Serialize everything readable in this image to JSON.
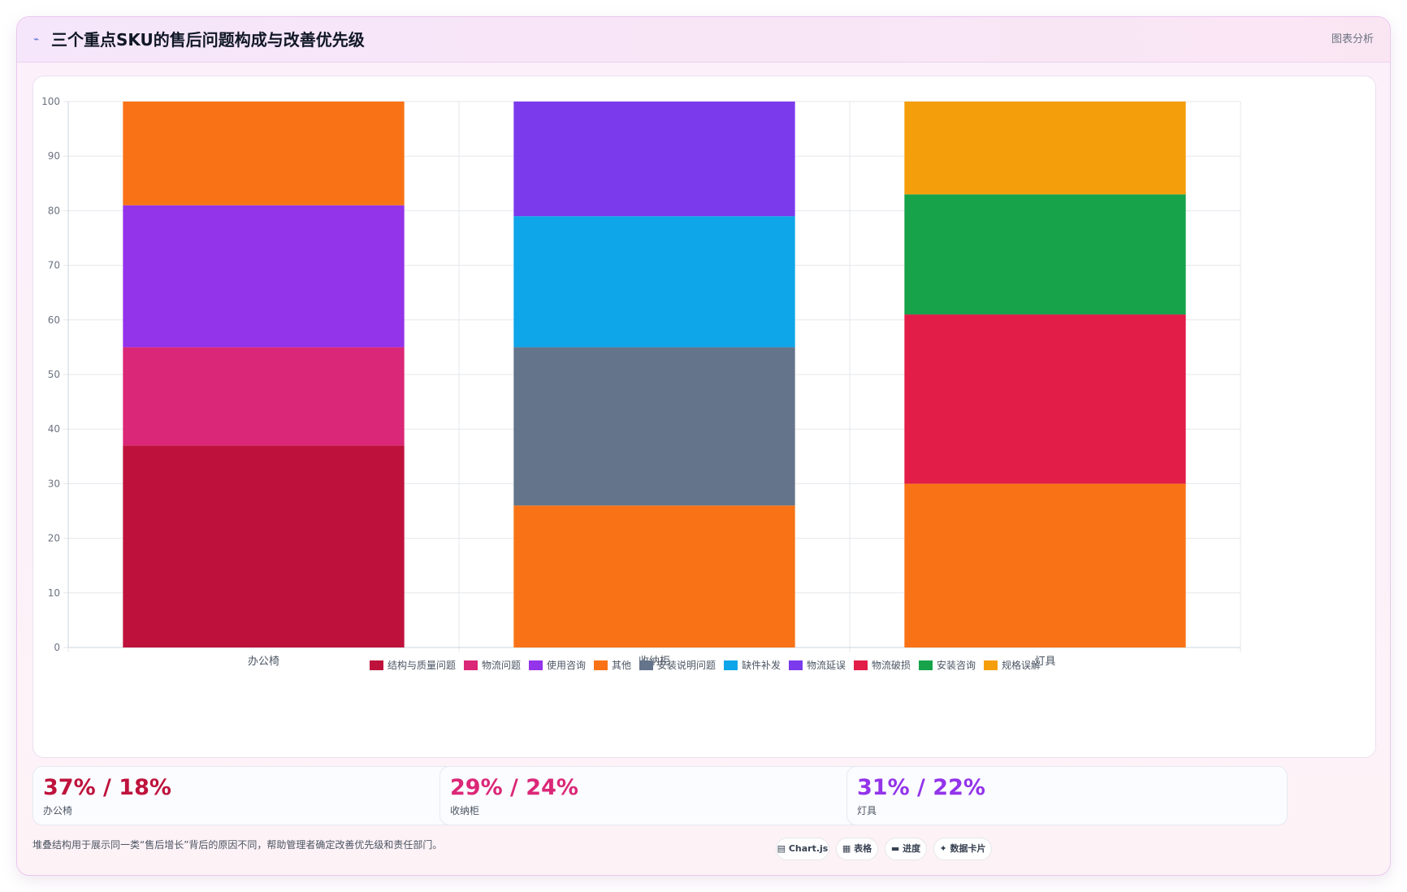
{
  "header": {
    "icon": "line-chart-icon",
    "title": "三个重点SKU的售后问题构成与改善优先级",
    "tag": "图表分析"
  },
  "chart_data": {
    "type": "bar",
    "stacked": true,
    "categories": [
      "办公椅",
      "收纳柜",
      "灯具"
    ],
    "ylim": [
      0,
      100
    ],
    "yticks": [
      0,
      10,
      20,
      30,
      40,
      50,
      60,
      70,
      80,
      90,
      100
    ],
    "grid": true,
    "legend_position": "bottom",
    "series": [
      {
        "name": "结构与质量问题",
        "color": "#be123c",
        "values": [
          37,
          0,
          0
        ]
      },
      {
        "name": "物流问题",
        "color": "#db2777",
        "values": [
          18,
          0,
          0
        ]
      },
      {
        "name": "使用咨询",
        "color": "#9333ea",
        "values": [
          26,
          0,
          0
        ]
      },
      {
        "name": "其他",
        "color": "#f97316",
        "values": [
          19,
          26,
          30
        ]
      },
      {
        "name": "安装说明问题",
        "color": "#64748b",
        "values": [
          0,
          29,
          0
        ]
      },
      {
        "name": "缺件补发",
        "color": "#0ea5e9",
        "values": [
          0,
          24,
          0
        ]
      },
      {
        "name": "物流延误",
        "color": "#7c3aed",
        "values": [
          0,
          21,
          0
        ]
      },
      {
        "name": "物流破损",
        "color": "#e11d48",
        "values": [
          0,
          0,
          31
        ]
      },
      {
        "name": "安装咨询",
        "color": "#16a34a",
        "values": [
          0,
          0,
          22
        ]
      },
      {
        "name": "规格误解",
        "color": "#f59e0b",
        "values": [
          0,
          0,
          17
        ]
      }
    ]
  },
  "stats": [
    {
      "value": "37% / 18%",
      "label": "办公椅",
      "color": "#be123c"
    },
    {
      "value": "29% / 24%",
      "label": "收纳柜",
      "color": "#db2777"
    },
    {
      "value": "31% / 22%",
      "label": "灯具",
      "color": "#9333ea"
    }
  ],
  "footer": {
    "note": "堆叠结构用于展示同一类“售后增长”背后的原因不同，帮助管理者确定改善优先级和责任部门。",
    "pills": [
      {
        "label": "▤ Chart.js",
        "icon": "chart-icon"
      },
      {
        "label": "▦ 表格",
        "icon": "table-icon"
      },
      {
        "label": "▬ 进度",
        "icon": "progress-icon"
      },
      {
        "label": "✦ 数据卡片",
        "icon": "cards-icon"
      }
    ]
  }
}
